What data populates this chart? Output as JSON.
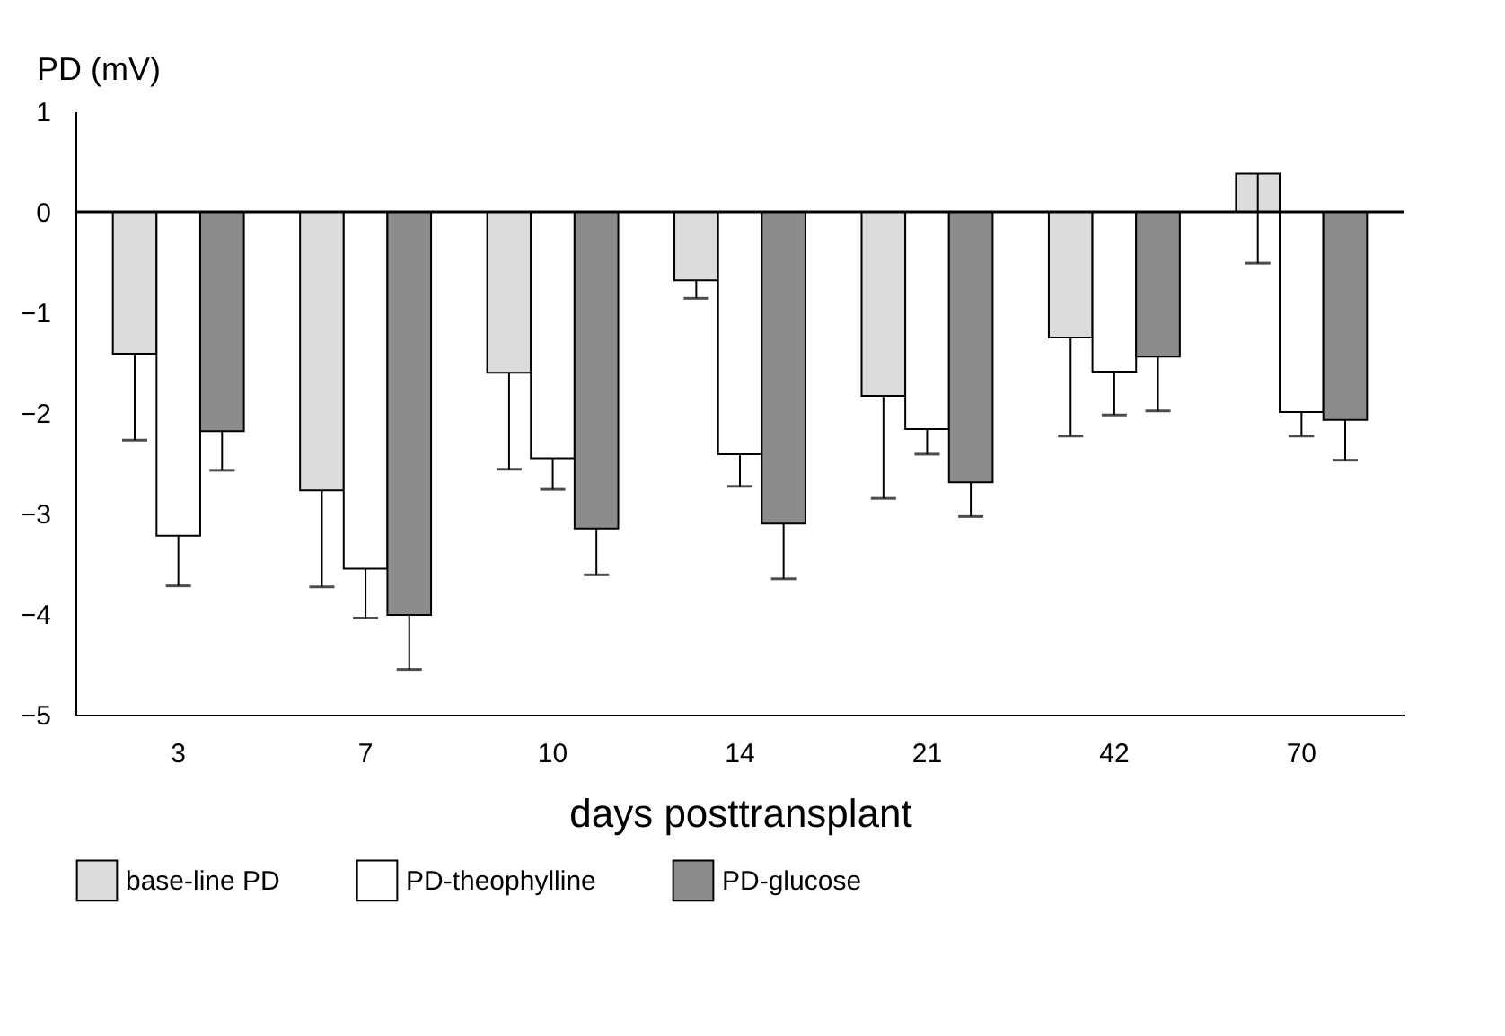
{
  "chart_data": {
    "type": "bar",
    "ylabel": "PD (mV)",
    "xlabel": "days posttransplant",
    "categories": [
      "3",
      "7",
      "10",
      "14",
      "21",
      "42",
      "70"
    ],
    "series": [
      {
        "name": "base-line PD",
        "color": "#dcdcdc",
        "values": [
          -1.41,
          -2.77,
          -1.6,
          -0.68,
          -1.83,
          -1.25,
          0.38
        ],
        "errors": [
          [
            -2.27,
            -1.41
          ],
          [
            -3.73,
            -2.77
          ],
          [
            -2.56,
            -1.6
          ],
          [
            -0.86,
            -0.68
          ],
          [
            -2.85,
            -1.83
          ],
          [
            -2.23,
            -1.25
          ],
          [
            -0.51,
            0.38
          ]
        ]
      },
      {
        "name": "PD-theophylline",
        "color": "#ffffff",
        "values": [
          -3.22,
          -3.55,
          -2.45,
          -2.41,
          -2.16,
          -1.59,
          -1.99
        ],
        "errors": [
          [
            -3.72,
            -3.22
          ],
          [
            -4.04,
            -3.55
          ],
          [
            -2.76,
            -2.45
          ],
          [
            -2.73,
            -2.41
          ],
          [
            -2.41,
            -2.16
          ],
          [
            -2.02,
            -1.59
          ],
          [
            -2.23,
            -1.99
          ]
        ]
      },
      {
        "name": "PD-glucose",
        "color": "#8c8c8c",
        "values": [
          -2.18,
          -4.01,
          -3.15,
          -3.1,
          -2.69,
          -1.44,
          -2.07
        ],
        "errors": [
          [
            -2.57,
            -2.18
          ],
          [
            -4.55,
            -4.01
          ],
          [
            -3.61,
            -3.15
          ],
          [
            -3.65,
            -3.1
          ],
          [
            -3.03,
            -2.69
          ],
          [
            -1.98,
            -1.44
          ],
          [
            -2.47,
            -2.07
          ]
        ]
      }
    ],
    "ylim": [
      -5,
      1
    ],
    "yticks": [
      -5,
      -4,
      -3,
      -2,
      -1,
      0,
      1
    ],
    "ref_lines": [
      {
        "axis": "y",
        "value": 0,
        "color": "#000000"
      }
    ],
    "grid": false,
    "legend": "bottom"
  }
}
